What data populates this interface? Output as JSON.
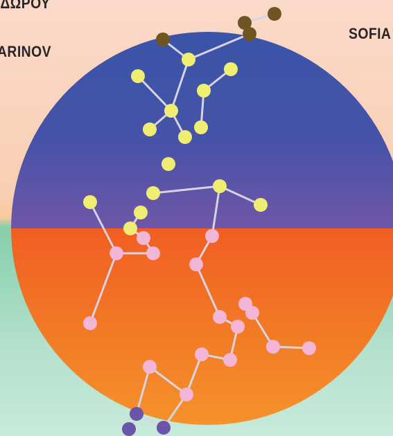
{
  "poster": {
    "text_greek": "ΑΔΩΡΟΥ",
    "text_left": "ARINOV",
    "text_right": "SOFIA"
  },
  "colors": {
    "bg_top": "#fbd6c6",
    "bg_mid": "#f9c9a6",
    "bg_bottom": "#bfe5d4",
    "bg_green": "#86cfab",
    "circle_blue": "#3b53a6",
    "circle_purple": "#6a55a8",
    "circle_orange": "#f26422",
    "circle_orange_light": "#f48a2a",
    "dot_yellow": "#f0ee72",
    "dot_pink": "#f3b6d6",
    "dot_brown": "#6e5622",
    "dot_violet": "#6a55a8",
    "line": "#dcd6e0"
  }
}
